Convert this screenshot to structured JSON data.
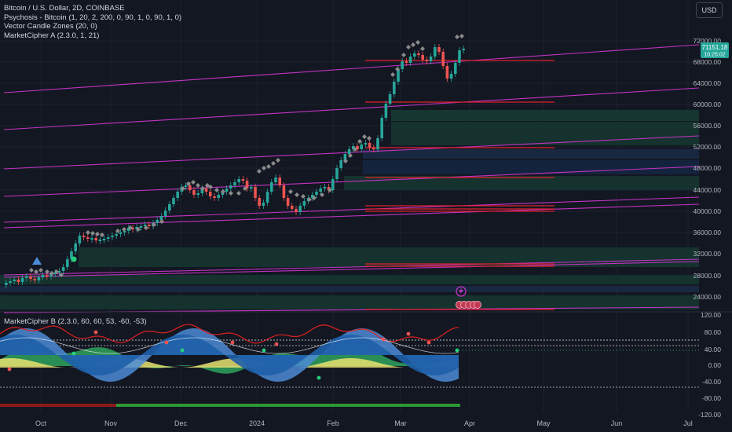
{
  "legend": {
    "title": "Bitcoin / U.S. Dollar, 2D, COINBASE",
    "indicators": [
      "Psychosis - Bitcoin (1, 20, 2, 200, 0, 90, 1, 0, 90, 1, 0)",
      "Vector Candle Zones (20, 0)",
      "MarketCipher A (2.3.0, 1, 21)"
    ],
    "lower_indicator": "MarketCipher B (2.3.0, 60, 60, 53, -60, -53)"
  },
  "currency_button": "USD",
  "price_axis": {
    "labels": [
      "72000.00",
      "68000.00",
      "64000.00",
      "60000.00",
      "56000.00",
      "52000.00",
      "48000.00",
      "44000.00",
      "40000.00",
      "36000.00",
      "32000.00",
      "28000.00",
      "24000.00"
    ],
    "current_price": "71151.18",
    "countdown": "10:25:02",
    "current_color": "#26a69a"
  },
  "oscillator_axis": {
    "labels": [
      "120.00",
      "80.00",
      "40.00",
      "0.00",
      "-40.00",
      "-80.00",
      "-120.00"
    ]
  },
  "time_axis": {
    "labels": [
      "Oct",
      "Nov",
      "Dec",
      "2024",
      "Feb",
      "Mar",
      "Apr",
      "May",
      "Jun",
      "Jul"
    ]
  },
  "colors": {
    "background": "#131722",
    "up_candle": "#26a69a",
    "down_candle": "#ef5350",
    "channel_line": "#c433c4",
    "level_line": "#e0202c",
    "zone_fill": "#1b3b34",
    "wave_light": "#4c8bd6",
    "wave_dark": "#1e5fa8",
    "money_flow_green": "#30a050",
    "money_flow_yellow": "#f0e070"
  },
  "icons": {
    "triangle_marker": "triangle-up-icon",
    "lightning_marker": "lightning-icon",
    "circle_markers": "circle-marker-icon"
  }
}
